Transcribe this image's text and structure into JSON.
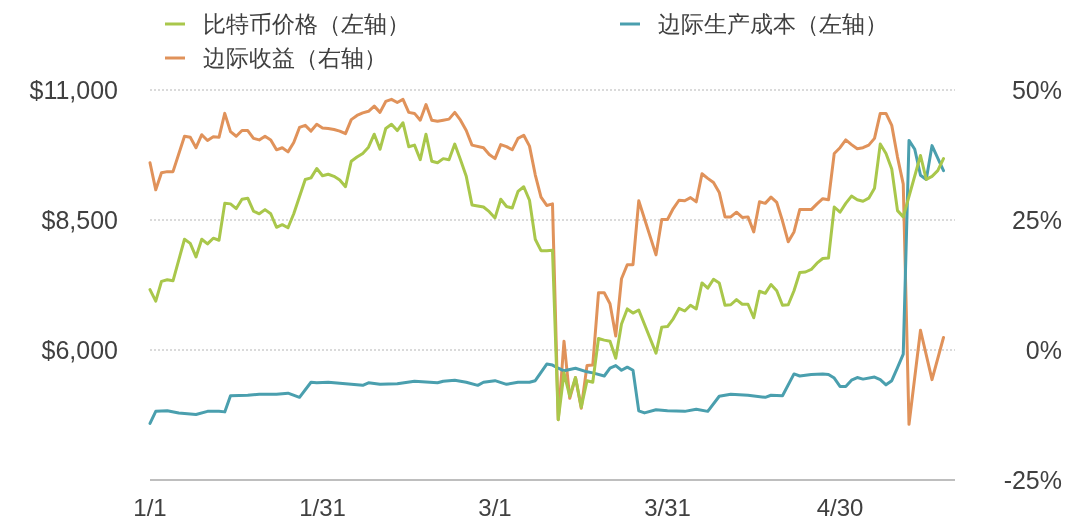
{
  "chart_data": {
    "type": "line",
    "xlim": [
      "--01-01",
      "--05-20"
    ],
    "xticks": [
      {
        "value": "--01-01",
        "label": "1/1"
      },
      {
        "value": "--01-31",
        "label": "1/31"
      },
      {
        "value": "--03-01",
        "label": "3/1"
      },
      {
        "value": "--03-31",
        "label": "3/31"
      },
      {
        "value": "--04-30",
        "label": "4/30"
      }
    ],
    "ylim": [
      3500,
      11000
    ],
    "yticks": [
      {
        "value": 6000,
        "label": "$6,000"
      },
      {
        "value": 8500,
        "label": "$8,500"
      },
      {
        "value": 11000,
        "label": "$11,000"
      }
    ],
    "y2lim": [
      -25,
      50
    ],
    "y2ticks": [
      {
        "value": -25,
        "label": "-25%"
      },
      {
        "value": 0,
        "label": "0%"
      },
      {
        "value": 25,
        "label": "25%"
      },
      {
        "value": 50,
        "label": "50%"
      }
    ],
    "grid": "y",
    "legend": "top",
    "series": [
      {
        "name": "比特币价格（左轴）",
        "color": "#a9c74b",
        "x": [
          "--01-01",
          "--01-02",
          "--01-03",
          "--01-04",
          "--01-05",
          "--01-07",
          "--01-08",
          "--01-09",
          "--01-10",
          "--01-11",
          "--01-12",
          "--01-13",
          "--01-14",
          "--01-15",
          "--01-16",
          "--01-17",
          "--01-18",
          "--01-19",
          "--01-20",
          "--01-21",
          "--01-22",
          "--01-23",
          "--01-24",
          "--01-25",
          "--01-26",
          "--01-28",
          "--01-29",
          "--01-30",
          "--01-31",
          "--02-01",
          "--02-02",
          "--02-03",
          "--02-04",
          "--02-05",
          "--02-06",
          "--02-07",
          "--02-08",
          "--02-09",
          "--02-10",
          "--02-11",
          "--02-12",
          "--02-13",
          "--02-14",
          "--02-15",
          "--02-16",
          "--02-17",
          "--02-18",
          "--02-19",
          "--02-20",
          "--02-21",
          "--02-22",
          "--02-23",
          "--02-24",
          "--02-25",
          "--02-26",
          "--02-28",
          "--02-29",
          "--03-01",
          "--03-02",
          "--03-03",
          "--03-04",
          "--03-05",
          "--03-06",
          "--03-07",
          "--03-08",
          "--03-09",
          "--03-10",
          "--03-11",
          "--03-12",
          "--03-13",
          "--03-14",
          "--03-15",
          "--03-16",
          "--03-17",
          "--03-18",
          "--03-19",
          "--03-20",
          "--03-21",
          "--03-22",
          "--03-23",
          "--03-24",
          "--03-25",
          "--03-26",
          "--03-29",
          "--03-30",
          "--03-31",
          "--04-01",
          "--04-02",
          "--04-03",
          "--04-04",
          "--04-05",
          "--04-06",
          "--04-07",
          "--04-08",
          "--04-09",
          "--04-10",
          "--04-11",
          "--04-12",
          "--04-13",
          "--04-14",
          "--04-15",
          "--04-16",
          "--04-17",
          "--04-18",
          "--04-19",
          "--04-20",
          "--04-21",
          "--04-22",
          "--04-23",
          "--04-24",
          "--04-25",
          "--04-26",
          "--04-27",
          "--04-28",
          "--04-29",
          "--04-30",
          "--05-01",
          "--05-02",
          "--05-03",
          "--05-04",
          "--05-05",
          "--05-06",
          "--05-07",
          "--05-08",
          "--05-09",
          "--05-10",
          "--05-11",
          "--05-14",
          "--05-15",
          "--05-16",
          "--05-17",
          "--05-18"
        ],
        "values": [
          7160,
          6940,
          7320,
          7350,
          7330,
          8130,
          8050,
          7790,
          8130,
          8040,
          8150,
          8110,
          8820,
          8810,
          8720,
          8900,
          8920,
          8670,
          8620,
          8700,
          8620,
          8360,
          8410,
          8350,
          8620,
          9280,
          9310,
          9490,
          9350,
          9380,
          9340,
          9270,
          9140,
          9630,
          9710,
          9780,
          9900,
          10150,
          9860,
          10260,
          10340,
          10220,
          10370,
          9910,
          9940,
          9660,
          10150,
          9630,
          9600,
          9680,
          9660,
          9960,
          9660,
          9340,
          8790,
          8750,
          8660,
          8540,
          8900,
          8760,
          8730,
          9050,
          9140,
          8880,
          8130,
          7910,
          7910,
          7920,
          4660,
          5560,
          5110,
          5470,
          4900,
          5410,
          5380,
          6220,
          6190,
          6170,
          5840,
          6500,
          6790,
          6710,
          6770,
          5940,
          6440,
          6450,
          6600,
          6800,
          6750,
          6860,
          6790,
          7290,
          7190,
          7360,
          7290,
          6860,
          6870,
          6970,
          6880,
          6880,
          6620,
          7130,
          7090,
          7260,
          7140,
          6860,
          6870,
          7140,
          7490,
          7500,
          7550,
          7670,
          7760,
          7770,
          8750,
          8650,
          8820,
          8960,
          8890,
          8860,
          8920,
          9110,
          9960,
          9780,
          9480,
          8680,
          8560,
          9740,
          9280,
          9340,
          9450,
          9680
        ]
      },
      {
        "name": "边际生产成本（左轴）",
        "color": "#4a9fae",
        "x": [
          "--01-01",
          "--01-02",
          "--01-04",
          "--01-06",
          "--01-09",
          "--01-11",
          "--01-13",
          "--01-14",
          "--01-15",
          "--01-18",
          "--01-20",
          "--01-23",
          "--01-25",
          "--01-27",
          "--01-29",
          "--01-30",
          "--02-01",
          "--02-04",
          "--02-07",
          "--02-08",
          "--02-10",
          "--02-13",
          "--02-16",
          "--02-20",
          "--02-21",
          "--02-23",
          "--02-25",
          "--02-27",
          "--02-28",
          "--03-01",
          "--03-03",
          "--03-05",
          "--03-07",
          "--03-08",
          "--03-10",
          "--03-11",
          "--03-12",
          "--03-13",
          "--03-15",
          "--03-17",
          "--03-18",
          "--03-20",
          "--03-21",
          "--03-22",
          "--03-23",
          "--03-24",
          "--03-25",
          "--03-26",
          "--03-27",
          "--03-29",
          "--03-31",
          "--04-03",
          "--04-05",
          "--04-07",
          "--04-09",
          "--04-11",
          "--04-14",
          "--04-17",
          "--04-18",
          "--04-20",
          "--04-22",
          "--04-23",
          "--04-25",
          "--04-27",
          "--04-28",
          "--04-29",
          "--04-30",
          "--05-01",
          "--05-02",
          "--05-03",
          "--05-04",
          "--05-06",
          "--05-07",
          "--05-08",
          "--05-09",
          "--05-10",
          "--05-11",
          "--05-12",
          "--05-13",
          "--05-14",
          "--05-15",
          "--05-16",
          "--05-18"
        ],
        "values": [
          4590,
          4820,
          4830,
          4790,
          4760,
          4820,
          4820,
          4810,
          5120,
          5130,
          5150,
          5150,
          5170,
          5090,
          5380,
          5370,
          5380,
          5350,
          5320,
          5370,
          5340,
          5350,
          5400,
          5370,
          5400,
          5420,
          5380,
          5320,
          5380,
          5410,
          5340,
          5380,
          5380,
          5410,
          5730,
          5710,
          5650,
          5600,
          5650,
          5580,
          5560,
          5500,
          5650,
          5700,
          5610,
          5670,
          5610,
          4830,
          4790,
          4850,
          4830,
          4820,
          4860,
          4820,
          5110,
          5150,
          5130,
          5090,
          5130,
          5120,
          5540,
          5500,
          5530,
          5540,
          5530,
          5460,
          5300,
          5300,
          5420,
          5470,
          5440,
          5480,
          5430,
          5330,
          5410,
          5660,
          5920,
          10030,
          9860,
          9360,
          9280,
          9930,
          9450
        ]
      },
      {
        "name": "边际收益（右轴）",
        "color": "#e0925a",
        "axis": "y2",
        "x": [
          "--01-01",
          "--01-02",
          "--01-03",
          "--01-04",
          "--01-05",
          "--01-07",
          "--01-08",
          "--01-09",
          "--01-10",
          "--01-11",
          "--01-12",
          "--01-13",
          "--01-14",
          "--01-15",
          "--01-16",
          "--01-17",
          "--01-18",
          "--01-19",
          "--01-20",
          "--01-21",
          "--01-22",
          "--01-23",
          "--01-24",
          "--01-25",
          "--01-26",
          "--01-27",
          "--01-28",
          "--01-29",
          "--01-30",
          "--01-31",
          "--02-01",
          "--02-02",
          "--02-03",
          "--02-04",
          "--02-05",
          "--02-06",
          "--02-07",
          "--02-08",
          "--02-09",
          "--02-10",
          "--02-11",
          "--02-12",
          "--02-13",
          "--02-14",
          "--02-15",
          "--02-16",
          "--02-17",
          "--02-18",
          "--02-19",
          "--02-20",
          "--02-21",
          "--02-22",
          "--02-23",
          "--02-24",
          "--02-25",
          "--02-26",
          "--02-28",
          "--02-29",
          "--03-01",
          "--03-02",
          "--03-03",
          "--03-04",
          "--03-05",
          "--03-06",
          "--03-07",
          "--03-08",
          "--03-09",
          "--03-10",
          "--03-11",
          "--03-12",
          "--03-13",
          "--03-14",
          "--03-15",
          "--03-16",
          "--03-17",
          "--03-18",
          "--03-19",
          "--03-20",
          "--03-21",
          "--03-22",
          "--03-23",
          "--03-24",
          "--03-25",
          "--03-26",
          "--03-29",
          "--03-30",
          "--03-31",
          "--04-01",
          "--04-02",
          "--04-03",
          "--04-04",
          "--04-05",
          "--04-06",
          "--04-07",
          "--04-08",
          "--04-09",
          "--04-10",
          "--04-11",
          "--04-12",
          "--04-13",
          "--04-14",
          "--04-15",
          "--04-16",
          "--04-17",
          "--04-18",
          "--04-19",
          "--04-20",
          "--04-21",
          "--04-22",
          "--04-23",
          "--04-24",
          "--04-25",
          "--04-26",
          "--04-27",
          "--04-28",
          "--04-29",
          "--04-30",
          "--05-01",
          "--05-02",
          "--05-03",
          "--05-04",
          "--05-05",
          "--05-06",
          "--05-07",
          "--05-08",
          "--05-09",
          "--05-10",
          "--05-11",
          "--05-12",
          "--05-14",
          "--05-16",
          "--05-18"
        ],
        "values": [
          36.0,
          30.8,
          34.1,
          34.3,
          34.3,
          41.1,
          40.9,
          38.9,
          41.4,
          40.3,
          41.0,
          40.9,
          45.5,
          42.0,
          41.1,
          42.2,
          42.2,
          40.7,
          40.4,
          41.1,
          40.4,
          38.5,
          38.9,
          38.1,
          39.9,
          42.8,
          43.2,
          42.1,
          43.4,
          42.7,
          42.6,
          42.4,
          42.1,
          41.6,
          44.3,
          45.1,
          45.6,
          45.9,
          46.9,
          45.7,
          47.8,
          48.2,
          47.6,
          48.2,
          45.7,
          45.5,
          44.2,
          47.2,
          44.2,
          44.0,
          44.2,
          44.4,
          45.7,
          44.2,
          42.2,
          39.4,
          38.9,
          37.6,
          36.8,
          39.5,
          39.1,
          38.5,
          40.7,
          41.3,
          39.2,
          33.7,
          29.4,
          27.8,
          28.1,
          -13.4,
          1.7,
          -9.3,
          -5.3,
          -11.2,
          -3.0,
          -2.9,
          11.0,
          11.0,
          8.9,
          2.7,
          13.7,
          16.4,
          16.4,
          28.7,
          18.3,
          25.1,
          25.1,
          27.2,
          28.8,
          28.7,
          29.3,
          28.5,
          33.9,
          33.0,
          32.2,
          30.3,
          25.6,
          25.6,
          26.5,
          25.5,
          25.6,
          22.7,
          28.5,
          28.2,
          29.4,
          28.4,
          24.8,
          20.8,
          22.7,
          27.0,
          27.0,
          27.0,
          28.1,
          29.1,
          28.9,
          37.8,
          38.9,
          40.4,
          39.5,
          38.7,
          38.9,
          39.4,
          40.7,
          45.5,
          45.5,
          43.2,
          37.1,
          31.9,
          -14.3,
          3.8,
          -5.7,
          2.4
        ]
      }
    ]
  }
}
